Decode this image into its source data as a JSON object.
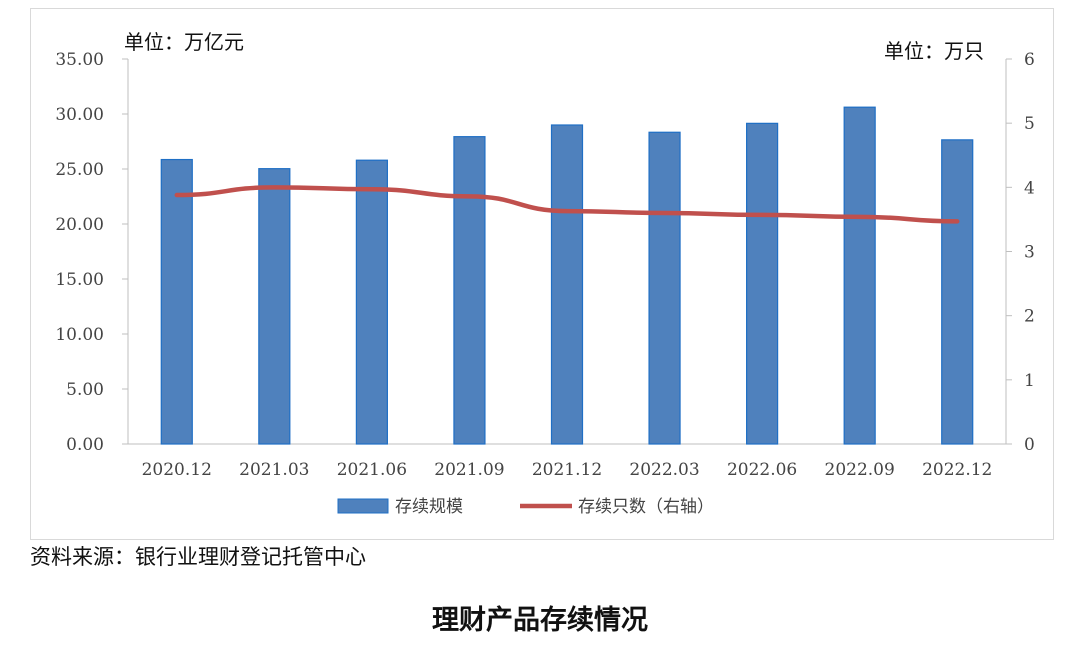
{
  "unit_left": "单位：万亿元",
  "unit_right": "单位：万只",
  "source": "资料来源：银行业理财登记托管中心",
  "caption": "理财产品存续情况",
  "colors": {
    "bar": "#4f81bd",
    "bar_edge": "#1f6fc5",
    "line": "#c0504d",
    "axis": "#bfbfbf"
  },
  "chart_data": {
    "type": "bar",
    "categories": [
      "2020.12",
      "2021.03",
      "2021.06",
      "2021.09",
      "2021.12",
      "2022.03",
      "2022.06",
      "2022.09",
      "2022.12"
    ],
    "series": [
      {
        "name": "存续规模",
        "type": "bar",
        "axis": "left",
        "values": [
          25.86,
          25.03,
          25.8,
          27.94,
          29.0,
          28.34,
          29.15,
          30.62,
          27.65
        ]
      },
      {
        "name": "存续只数（右轴）",
        "type": "line",
        "axis": "right",
        "values": [
          3.88,
          4.0,
          3.97,
          3.86,
          3.63,
          3.6,
          3.57,
          3.54,
          3.47
        ]
      }
    ],
    "ylim_left": [
      0,
      35
    ],
    "yticks_left": [
      "0.00",
      "5.00",
      "10.00",
      "15.00",
      "20.00",
      "25.00",
      "30.00",
      "35.00"
    ],
    "ylim_right": [
      0,
      6
    ],
    "yticks_right": [
      "0",
      "1",
      "2",
      "3",
      "4",
      "5",
      "6"
    ],
    "grid": false,
    "legend": "bottom"
  }
}
